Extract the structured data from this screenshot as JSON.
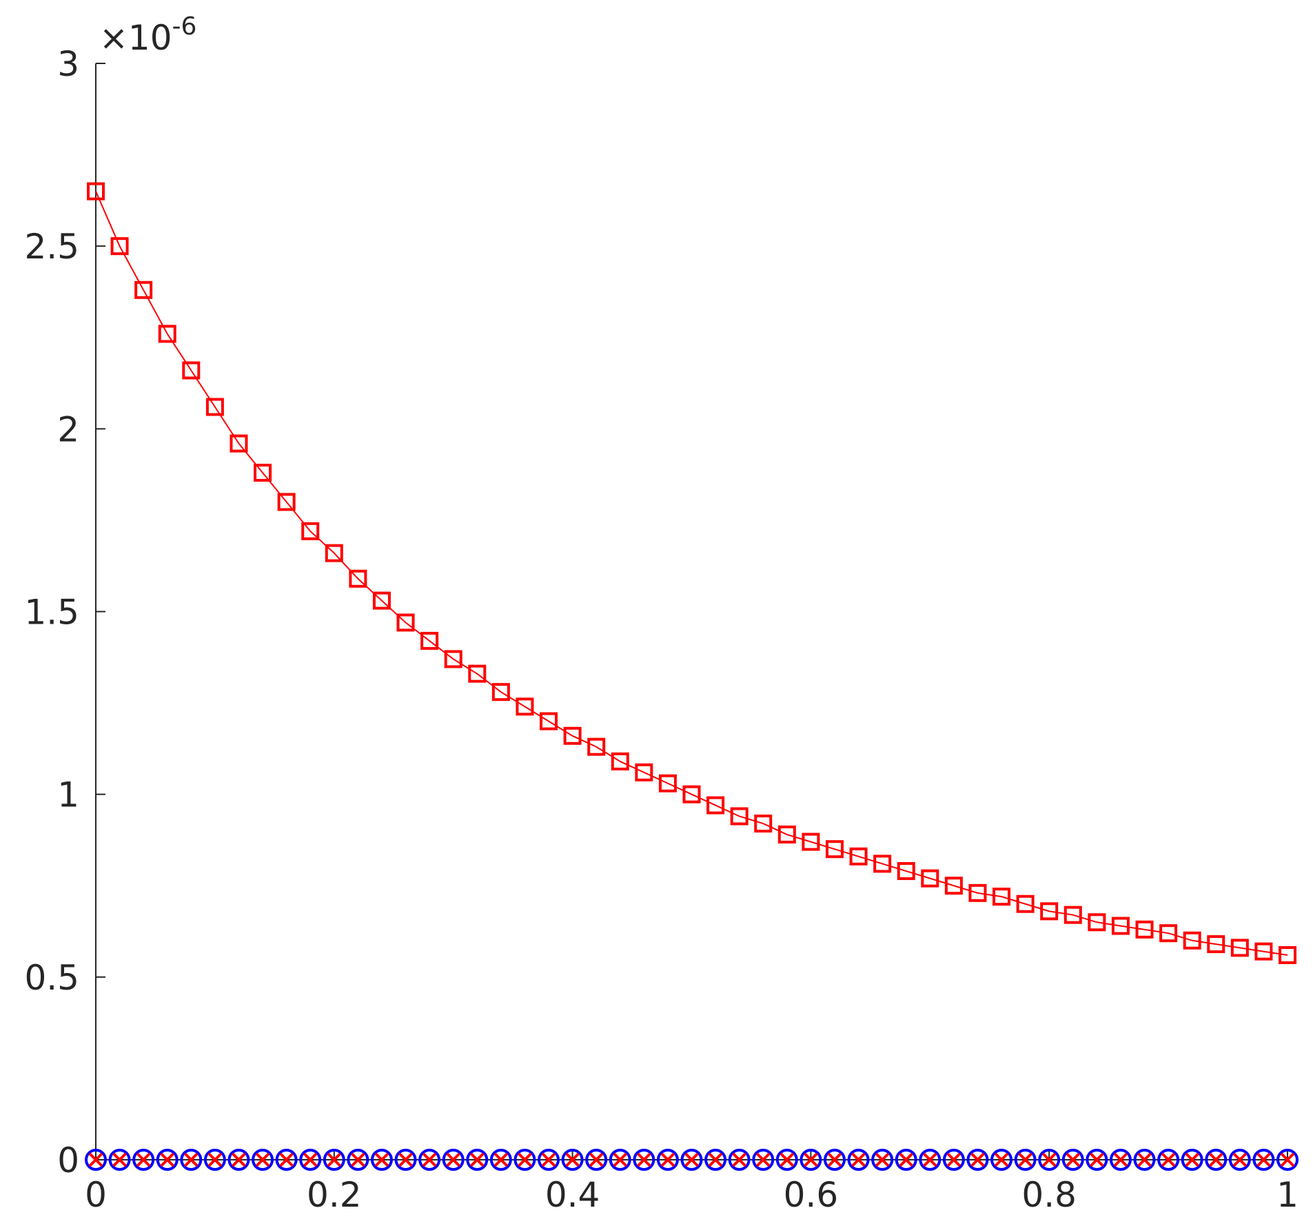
{
  "chart_data": {
    "type": "line",
    "y_multiplier": "×10",
    "y_exponent": "-6",
    "x": [
      0,
      0.02,
      0.04,
      0.06,
      0.08,
      0.1,
      0.12,
      0.14,
      0.16,
      0.18,
      0.2,
      0.22,
      0.24,
      0.26,
      0.28,
      0.3,
      0.32,
      0.34,
      0.36,
      0.38,
      0.4,
      0.42,
      0.44,
      0.46,
      0.48,
      0.5,
      0.52,
      0.54,
      0.56,
      0.58,
      0.6,
      0.62,
      0.64,
      0.66,
      0.68,
      0.7,
      0.72,
      0.74,
      0.76,
      0.78,
      0.8,
      0.82,
      0.84,
      0.86,
      0.88,
      0.9,
      0.92,
      0.94,
      0.96,
      0.98,
      1
    ],
    "series": [
      {
        "color": "#ff0000",
        "marker": "square",
        "line": true,
        "values": [
          2.65,
          2.5,
          2.38,
          2.26,
          2.16,
          2.06,
          1.96,
          1.88,
          1.8,
          1.72,
          1.66,
          1.59,
          1.53,
          1.47,
          1.42,
          1.37,
          1.33,
          1.28,
          1.24,
          1.2,
          1.16,
          1.13,
          1.09,
          1.06,
          1.03,
          1.0,
          0.97,
          0.94,
          0.92,
          0.89,
          0.87,
          0.85,
          0.83,
          0.81,
          0.79,
          0.77,
          0.75,
          0.73,
          0.72,
          0.7,
          0.68,
          0.67,
          0.65,
          0.64,
          0.63,
          0.62,
          0.6,
          0.59,
          0.58,
          0.57,
          0.56
        ]
      },
      {
        "color": "#0000ff",
        "marker": "circle",
        "line": false,
        "values": [
          0,
          0,
          0,
          0,
          0,
          0,
          0,
          0,
          0,
          0,
          0,
          0,
          0,
          0,
          0,
          0,
          0,
          0,
          0,
          0,
          0,
          0,
          0,
          0,
          0,
          0,
          0,
          0,
          0,
          0,
          0,
          0,
          0,
          0,
          0,
          0,
          0,
          0,
          0,
          0,
          0,
          0,
          0,
          0,
          0,
          0,
          0,
          0,
          0,
          0,
          0
        ]
      },
      {
        "color": "#ff0000",
        "marker": "x",
        "line": false,
        "values": [
          0,
          0,
          0,
          0,
          0,
          0,
          0,
          0,
          0,
          0,
          0,
          0,
          0,
          0,
          0,
          0,
          0,
          0,
          0,
          0,
          0,
          0,
          0,
          0,
          0,
          0,
          0,
          0,
          0,
          0,
          0,
          0,
          0,
          0,
          0,
          0,
          0,
          0,
          0,
          0,
          0,
          0,
          0,
          0,
          0,
          0,
          0,
          0,
          0,
          0,
          0
        ]
      }
    ],
    "xlim": [
      0,
      1
    ],
    "xticks": [
      0,
      0.2,
      0.4,
      0.6,
      0.8,
      1
    ],
    "ylim": [
      0,
      3
    ],
    "yticks": [
      0,
      0.5,
      1,
      1.5,
      2,
      2.5,
      3
    ],
    "grid": false
  }
}
